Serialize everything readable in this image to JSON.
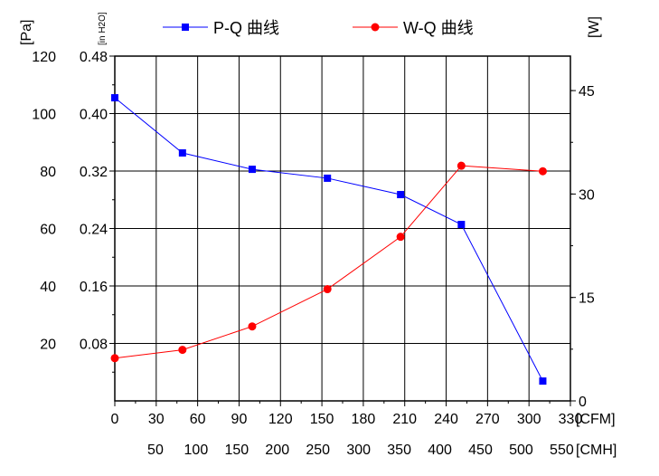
{
  "chart_data": {
    "type": "line",
    "legend_placement": "top",
    "grid": true,
    "x_axis": {
      "unit_label": "[CFM]",
      "range": [
        0,
        330
      ],
      "ticks": [
        "0",
        "30",
        "60",
        "90",
        "120",
        "150",
        "180",
        "210",
        "240",
        "270",
        "300",
        "330"
      ]
    },
    "x2_axis": {
      "unit_label": "[CMH]",
      "ticks": [
        "50",
        "100",
        "150",
        "200",
        "250",
        "300",
        "350",
        "400",
        "450",
        "500",
        "550"
      ]
    },
    "y_axis": {
      "unit_label": "[Pa]",
      "range": [
        0,
        120
      ],
      "ticks": [
        "20",
        "40",
        "60",
        "80",
        "100",
        "120"
      ]
    },
    "y_axis_inh2o": {
      "unit_label": "[in H2O]",
      "ticks": [
        "0.08",
        "0.16",
        "0.24",
        "0.32",
        "0.40",
        "0.48"
      ]
    },
    "y2_axis": {
      "unit_label": "[W]",
      "range": [
        0,
        50
      ],
      "ticks": [
        "0",
        "15",
        "30",
        "45"
      ]
    },
    "series": [
      {
        "name": "P-Q 曲线",
        "axis": "Pa",
        "color": "#0000ff",
        "marker": "square",
        "x": [
          0,
          49,
          99.5,
          154,
          207,
          251,
          310
        ],
        "y": [
          105.5,
          86.3,
          80.6,
          77.5,
          71.8,
          61.4,
          6.9
        ]
      },
      {
        "name": "W-Q 曲线",
        "axis": "W",
        "color": "#ff0000",
        "marker": "circle",
        "x": [
          0,
          49,
          99.5,
          154,
          207,
          251,
          310
        ],
        "y": [
          6.2,
          7.4,
          10.8,
          16.2,
          23.8,
          34.1,
          33.3
        ]
      }
    ]
  }
}
